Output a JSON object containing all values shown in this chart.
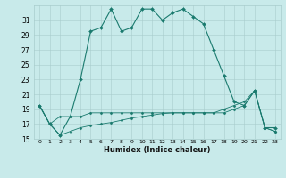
{
  "xlabel": "Humidex (Indice chaleur)",
  "x_values": [
    0,
    1,
    2,
    3,
    4,
    5,
    6,
    7,
    8,
    9,
    10,
    11,
    12,
    13,
    14,
    15,
    16,
    17,
    18,
    19,
    20,
    21,
    22,
    23
  ],
  "line_color": "#1a7a6e",
  "bg_color": "#c8eaea",
  "grid_color": "#a8cccc",
  "ylim": [
    15,
    33
  ],
  "yticks": [
    15,
    17,
    19,
    21,
    23,
    25,
    27,
    29,
    31
  ],
  "xlim": [
    -0.5,
    23.5
  ],
  "curve1": [
    19.5,
    17.0,
    15.5,
    18.0,
    23.0,
    29.5,
    30.0,
    32.5,
    29.5,
    30.0,
    32.5,
    32.5,
    31.0,
    32.0,
    32.5,
    31.5,
    30.5,
    27.0,
    23.5,
    20.0,
    19.5,
    21.5,
    16.5,
    16.5
  ],
  "curve2": [
    19.5,
    17.0,
    18.0,
    18.0,
    18.0,
    18.5,
    18.5,
    18.5,
    18.5,
    18.5,
    18.5,
    18.5,
    18.5,
    18.5,
    18.5,
    18.5,
    18.5,
    18.5,
    18.5,
    19.0,
    19.5,
    21.5,
    16.5,
    16.0
  ],
  "curve3": [
    19.5,
    17.0,
    15.5,
    16.0,
    16.5,
    16.8,
    17.0,
    17.2,
    17.5,
    17.8,
    18.0,
    18.2,
    18.4,
    18.5,
    18.5,
    18.5,
    18.5,
    18.5,
    19.0,
    19.5,
    20.0,
    21.5,
    16.5,
    16.0
  ]
}
